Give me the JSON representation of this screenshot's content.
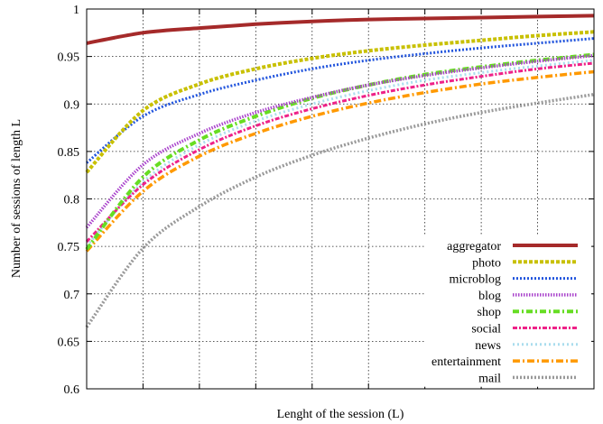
{
  "chart_data": {
    "type": "line",
    "xlabel": "Lenght of the session (L)",
    "ylabel": "Number of sessions of length L",
    "xlim": [
      1,
      10
    ],
    "ylim": [
      0.6,
      1
    ],
    "yticks": [
      0.6,
      0.65,
      0.7,
      0.75,
      0.8,
      0.85,
      0.9,
      0.95,
      1
    ],
    "ytick_labels": [
      "0.6",
      "0.65",
      "0.7",
      "0.75",
      "0.8",
      "0.85",
      "0.9",
      "0.95",
      "1"
    ],
    "grid": true,
    "legend_position": "bottom-right",
    "x": [
      1,
      2,
      3,
      4,
      5,
      6,
      7,
      8,
      9,
      10
    ],
    "series": [
      {
        "name": "aggregator",
        "color": "#a52a2a",
        "style": "solid",
        "values": [
          0.964,
          0.975,
          0.98,
          0.984,
          0.987,
          0.989,
          0.99,
          0.991,
          0.992,
          0.993
        ]
      },
      {
        "name": "photo",
        "color": "#c8c000",
        "style": "dashed",
        "values": [
          0.828,
          0.893,
          0.921,
          0.937,
          0.948,
          0.956,
          0.962,
          0.967,
          0.972,
          0.976
        ]
      },
      {
        "name": "microblog",
        "color": "#2255dd",
        "style": "dotted",
        "values": [
          0.838,
          0.887,
          0.91,
          0.925,
          0.937,
          0.946,
          0.953,
          0.959,
          0.964,
          0.969
        ]
      },
      {
        "name": "blog",
        "color": "#aa44cc",
        "style": "dotted-dense",
        "values": [
          0.77,
          0.836,
          0.869,
          0.891,
          0.907,
          0.92,
          0.93,
          0.938,
          0.945,
          0.951
        ]
      },
      {
        "name": "shop",
        "color": "#66dd22",
        "style": "dashdot",
        "values": [
          0.747,
          0.823,
          0.862,
          0.887,
          0.906,
          0.92,
          0.931,
          0.939,
          0.946,
          0.952
        ]
      },
      {
        "name": "social",
        "color": "#ee2288",
        "style": "dashdot-fine",
        "values": [
          0.755,
          0.815,
          0.852,
          0.877,
          0.895,
          0.909,
          0.92,
          0.929,
          0.937,
          0.943
        ]
      },
      {
        "name": "news",
        "color": "#aaddee",
        "style": "dotted-light",
        "values": [
          0.75,
          0.818,
          0.857,
          0.882,
          0.9,
          0.914,
          0.925,
          0.933,
          0.94,
          0.946
        ]
      },
      {
        "name": "entertainment",
        "color": "#ff9900",
        "style": "dashdot-long",
        "values": [
          0.745,
          0.808,
          0.845,
          0.869,
          0.887,
          0.901,
          0.912,
          0.921,
          0.928,
          0.934
        ]
      },
      {
        "name": "mail",
        "color": "#999999",
        "style": "dotted-grey",
        "values": [
          0.665,
          0.748,
          0.792,
          0.823,
          0.846,
          0.864,
          0.879,
          0.891,
          0.901,
          0.91
        ]
      }
    ]
  }
}
